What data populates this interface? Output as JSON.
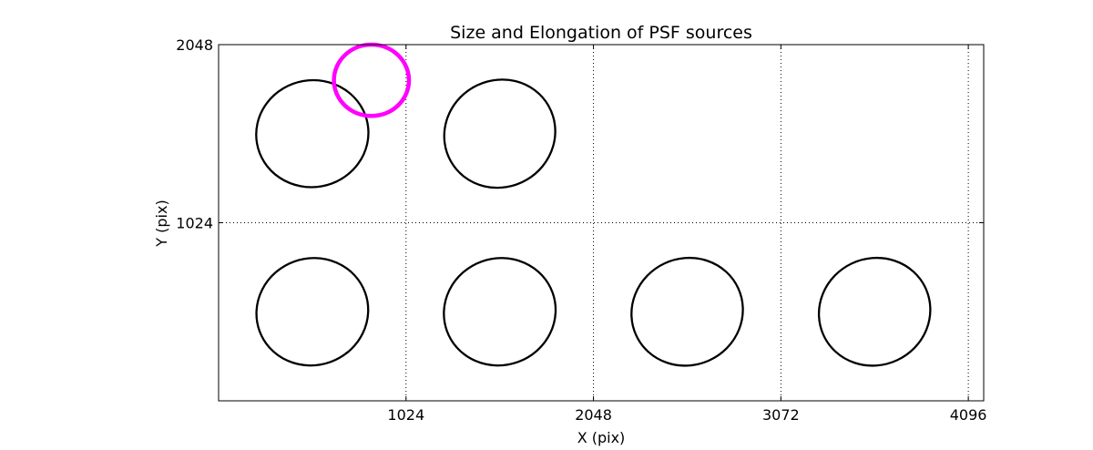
{
  "chart_data": {
    "type": "scatter",
    "title": "Size and Elongation of PSF sources",
    "xlabel": "X (pix)",
    "ylabel": "Y (pix)",
    "xlim": [
      0,
      4180
    ],
    "ylim": [
      0,
      2048
    ],
    "xticks": [
      1024,
      2048,
      3072,
      4096
    ],
    "xtick_labels": [
      "1024",
      "2048",
      "3072",
      "4096"
    ],
    "yticks": [
      1024,
      2048
    ],
    "ytick_labels": [
      "1024",
      "2048"
    ],
    "grid": true,
    "grid_style": "dotted",
    "sources": [
      {
        "x": 512,
        "y": 1536,
        "rx": 307,
        "ry": 307,
        "angle": -10,
        "color": "#000000"
      },
      {
        "x": 1536,
        "y": 1536,
        "rx": 307,
        "ry": 307,
        "angle": -30,
        "color": "#000000"
      },
      {
        "x": 512,
        "y": 512,
        "rx": 307,
        "ry": 307,
        "angle": -20,
        "color": "#000000"
      },
      {
        "x": 1536,
        "y": 512,
        "rx": 307,
        "ry": 307,
        "angle": -20,
        "color": "#000000"
      },
      {
        "x": 2560,
        "y": 512,
        "rx": 307,
        "ry": 307,
        "angle": -25,
        "color": "#000000"
      },
      {
        "x": 3584,
        "y": 512,
        "rx": 307,
        "ry": 307,
        "angle": -25,
        "color": "#000000"
      }
    ],
    "reference": {
      "x": 835,
      "y": 1843,
      "rx": 205,
      "ry": 205,
      "angle": 0,
      "color": "#ff00ff"
    }
  }
}
